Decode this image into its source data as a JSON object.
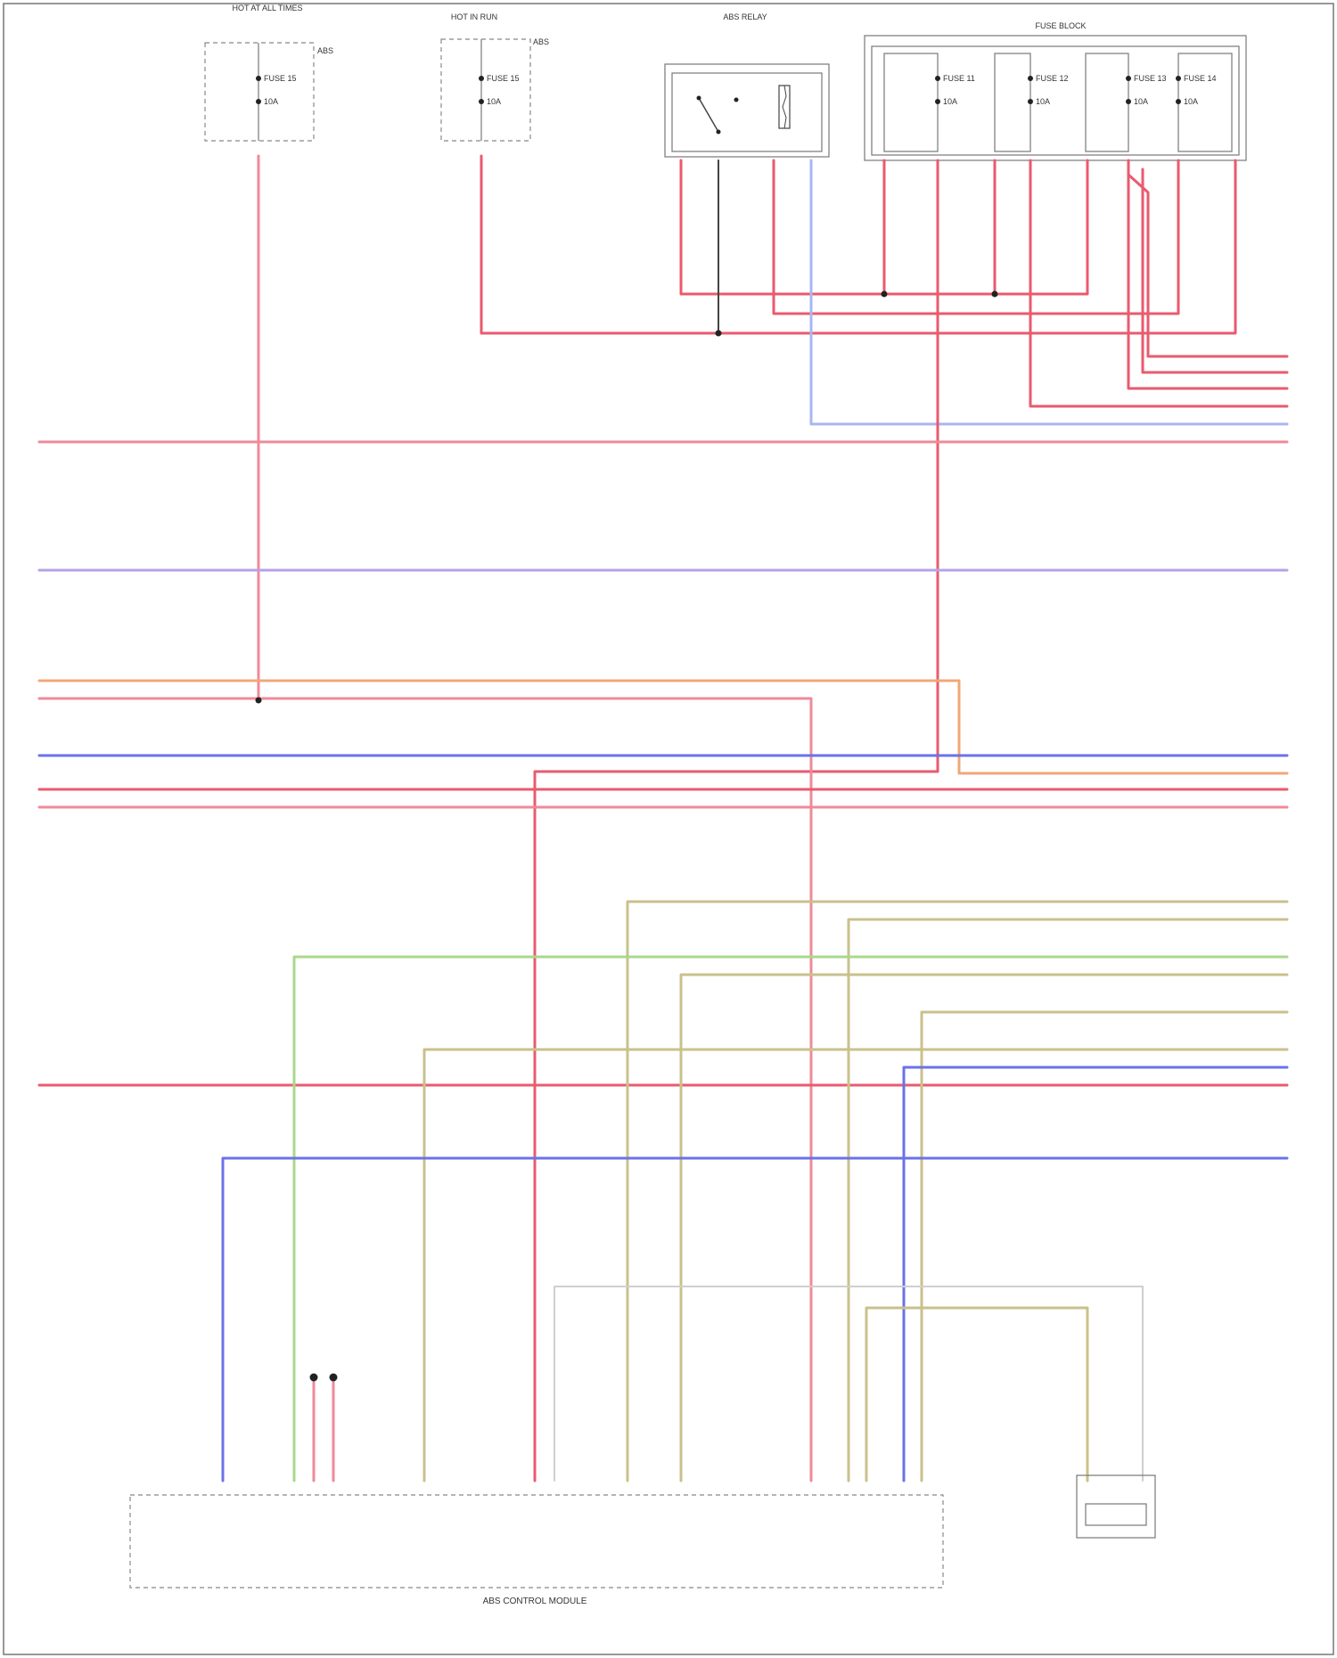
{
  "colors": {
    "frame": "#777777",
    "pink": "#ef8a9a",
    "red": "#ea5a6e",
    "orange": "#f0a878",
    "blue": "#6b72e8",
    "lightblue": "#a9b7ef",
    "violet": "#b7a2e6",
    "green": "#a8d98c",
    "olive": "#c9c18c",
    "gray": "#cfcfcf"
  },
  "components": {
    "hot_at_all_times_box": {
      "title": "HOT AT ALL TIMES",
      "fuse_label": "FUSE 15",
      "fuse_amps": "10A",
      "desc": "ABS"
    },
    "hot_in_run_box": {
      "title": "HOT IN RUN",
      "fuse_label": "FUSE 15",
      "fuse_amps": "10A",
      "desc": "ABS"
    },
    "relay_box": {
      "title": "ABS RELAY"
    },
    "fuse_block": {
      "title": "FUSE BLOCK",
      "fuses": [
        {
          "label": "FUSE 11",
          "amps": "10A"
        },
        {
          "label": "FUSE 12",
          "amps": "10A"
        },
        {
          "label": "FUSE 13",
          "amps": "10A"
        },
        {
          "label": "FUSE 14",
          "amps": "10A"
        }
      ]
    },
    "control_module": {
      "caption_line1": "ABS CONTROL MODULE",
      "caption_line2": ""
    },
    "sensor": {
      "body_label": "",
      "caption": ""
    }
  }
}
